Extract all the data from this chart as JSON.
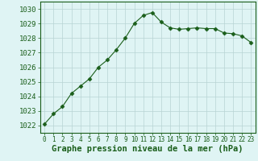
{
  "x": [
    0,
    1,
    2,
    3,
    4,
    5,
    6,
    7,
    8,
    9,
    10,
    11,
    12,
    13,
    14,
    15,
    16,
    17,
    18,
    19,
    20,
    21,
    22,
    23
  ],
  "y": [
    1022.1,
    1022.8,
    1023.3,
    1024.2,
    1024.7,
    1025.2,
    1026.0,
    1026.5,
    1027.2,
    1028.0,
    1029.0,
    1029.55,
    1029.75,
    1029.1,
    1028.7,
    1028.6,
    1028.65,
    1028.7,
    1028.65,
    1028.65,
    1028.35,
    1028.3,
    1028.15,
    1027.7
  ],
  "line_color": "#1a5e1a",
  "marker": "D",
  "marker_size": 2.5,
  "bg_color": "#dff4f4",
  "grid_color": "#b8d4d4",
  "ylabel_ticks": [
    1022,
    1023,
    1024,
    1025,
    1026,
    1027,
    1028,
    1029,
    1030
  ],
  "xlabel_ticks": [
    0,
    1,
    2,
    3,
    4,
    5,
    6,
    7,
    8,
    9,
    10,
    11,
    12,
    13,
    14,
    15,
    16,
    17,
    18,
    19,
    20,
    21,
    22,
    23
  ],
  "ylim": [
    1021.5,
    1030.5
  ],
  "xlim": [
    -0.5,
    23.5
  ],
  "xlabel": "Graphe pression niveau de la mer (hPa)",
  "xlabel_fontsize": 7.5,
  "tick_fontsize": 6.5,
  "line_color_hex": "#1a5e1a"
}
